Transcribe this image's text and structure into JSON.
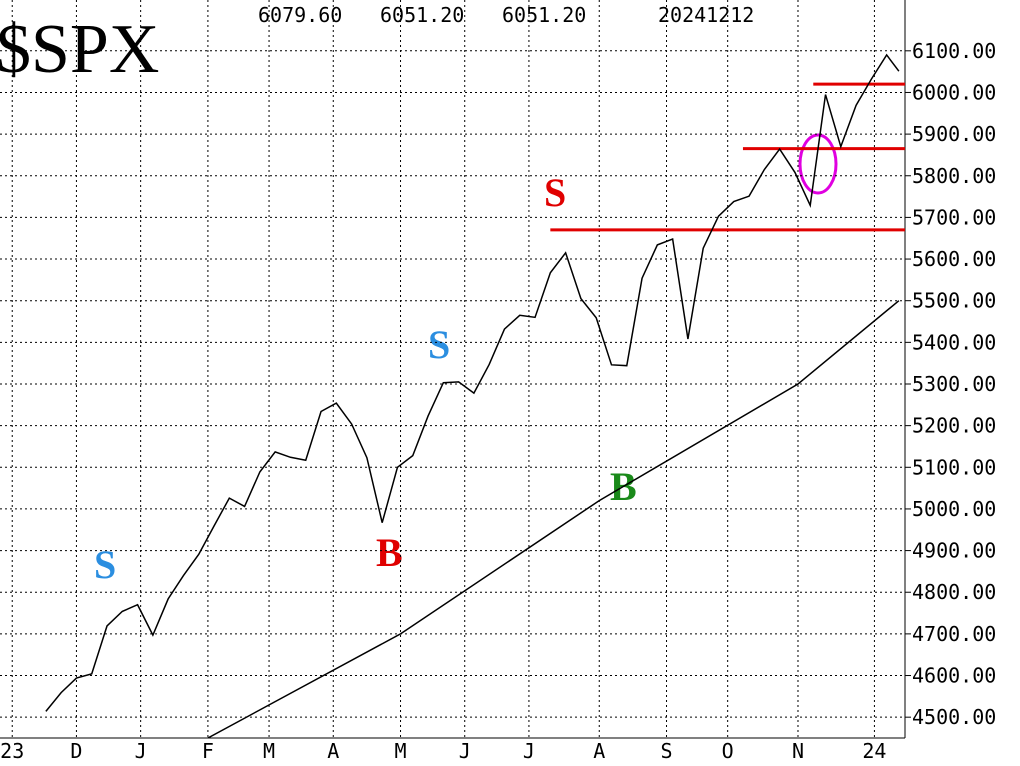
{
  "chart_data": {
    "type": "line",
    "title": "$SPX",
    "header": [
      "6079.60",
      "6051.20",
      "6051.20",
      "20241212"
    ],
    "xlim": [
      0,
      296
    ],
    "ylim": [
      4450,
      6222
    ],
    "xticks": [
      {
        "value": 4,
        "label": "23"
      },
      {
        "value": 25,
        "label": "D"
      },
      {
        "value": 46,
        "label": "J"
      },
      {
        "value": 68,
        "label": "F"
      },
      {
        "value": 88,
        "label": "M"
      },
      {
        "value": 109,
        "label": "A"
      },
      {
        "value": 131,
        "label": "M"
      },
      {
        "value": 152,
        "label": "J"
      },
      {
        "value": 173,
        "label": "J"
      },
      {
        "value": 196,
        "label": "A"
      },
      {
        "value": 218,
        "label": "S"
      },
      {
        "value": 238,
        "label": "O"
      },
      {
        "value": 261,
        "label": "N"
      },
      {
        "value": 286,
        "label": "24"
      }
    ],
    "yticks": [
      {
        "value": 4500,
        "label": "4500.00"
      },
      {
        "value": 4600,
        "label": "4600.00"
      },
      {
        "value": 4700,
        "label": "4700.00"
      },
      {
        "value": 4800,
        "label": "4800.00"
      },
      {
        "value": 4900,
        "label": "4900.00"
      },
      {
        "value": 5000,
        "label": "5000.00"
      },
      {
        "value": 5100,
        "label": "5100.00"
      },
      {
        "value": 5200,
        "label": "5200.00"
      },
      {
        "value": 5300,
        "label": "5300.00"
      },
      {
        "value": 5400,
        "label": "5400.00"
      },
      {
        "value": 5500,
        "label": "5500.00"
      },
      {
        "value": 5600,
        "label": "5600.00"
      },
      {
        "value": 5700,
        "label": "5700.00"
      },
      {
        "value": 5800,
        "label": "5800.00"
      },
      {
        "value": 5900,
        "label": "5900.00"
      },
      {
        "value": 6000,
        "label": "6000.00"
      },
      {
        "value": 6100,
        "label": "6100.00"
      }
    ],
    "grid": true,
    "series": [
      {
        "color": "#000000",
        "x": [
          15,
          20,
          25,
          30,
          35,
          40,
          45,
          50,
          55,
          60,
          65,
          70,
          75,
          80,
          85,
          90,
          95,
          100,
          105,
          110,
          115,
          120,
          125,
          130,
          135,
          140,
          145,
          150,
          155,
          160,
          165,
          170,
          175,
          180,
          185,
          190,
          195,
          200,
          205,
          210,
          215,
          220,
          225,
          230,
          235,
          240,
          245,
          250,
          255,
          260,
          265,
          270,
          275,
          280,
          285,
          290,
          294
        ],
        "values": [
          4514,
          4559,
          4594,
          4604,
          4719,
          4754,
          4770,
          4697,
          4784,
          4840,
          4891,
          4959,
          5026,
          5006,
          5089,
          5137,
          5124,
          5117,
          5234,
          5254,
          5204,
          5123,
          4967,
          5100,
          5128,
          5223,
          5303,
          5305,
          5278,
          5347,
          5432,
          5465,
          5460,
          5567,
          5615,
          5505,
          5459,
          5346,
          5344,
          5554,
          5634,
          5648,
          5408,
          5626,
          5703,
          5738,
          5751,
          5815,
          5864,
          5808,
          5729,
          5995,
          5870,
          5969,
          6032,
          6090,
          6051
        ]
      },
      {
        "color": "#000000",
        "x": [
          68,
          131,
          196,
          261,
          294
        ],
        "values": [
          4450,
          4700,
          5020,
          5300,
          5500
        ]
      }
    ],
    "levels": [
      {
        "value": 5670,
        "from": 180,
        "color": "#e00000"
      },
      {
        "value": 5865,
        "from": 243,
        "color": "#e00000"
      },
      {
        "value": 6020,
        "from": 266,
        "color": "#e00000"
      }
    ],
    "annotations": [
      "S",
      "B",
      "S",
      "S",
      "B"
    ]
  }
}
